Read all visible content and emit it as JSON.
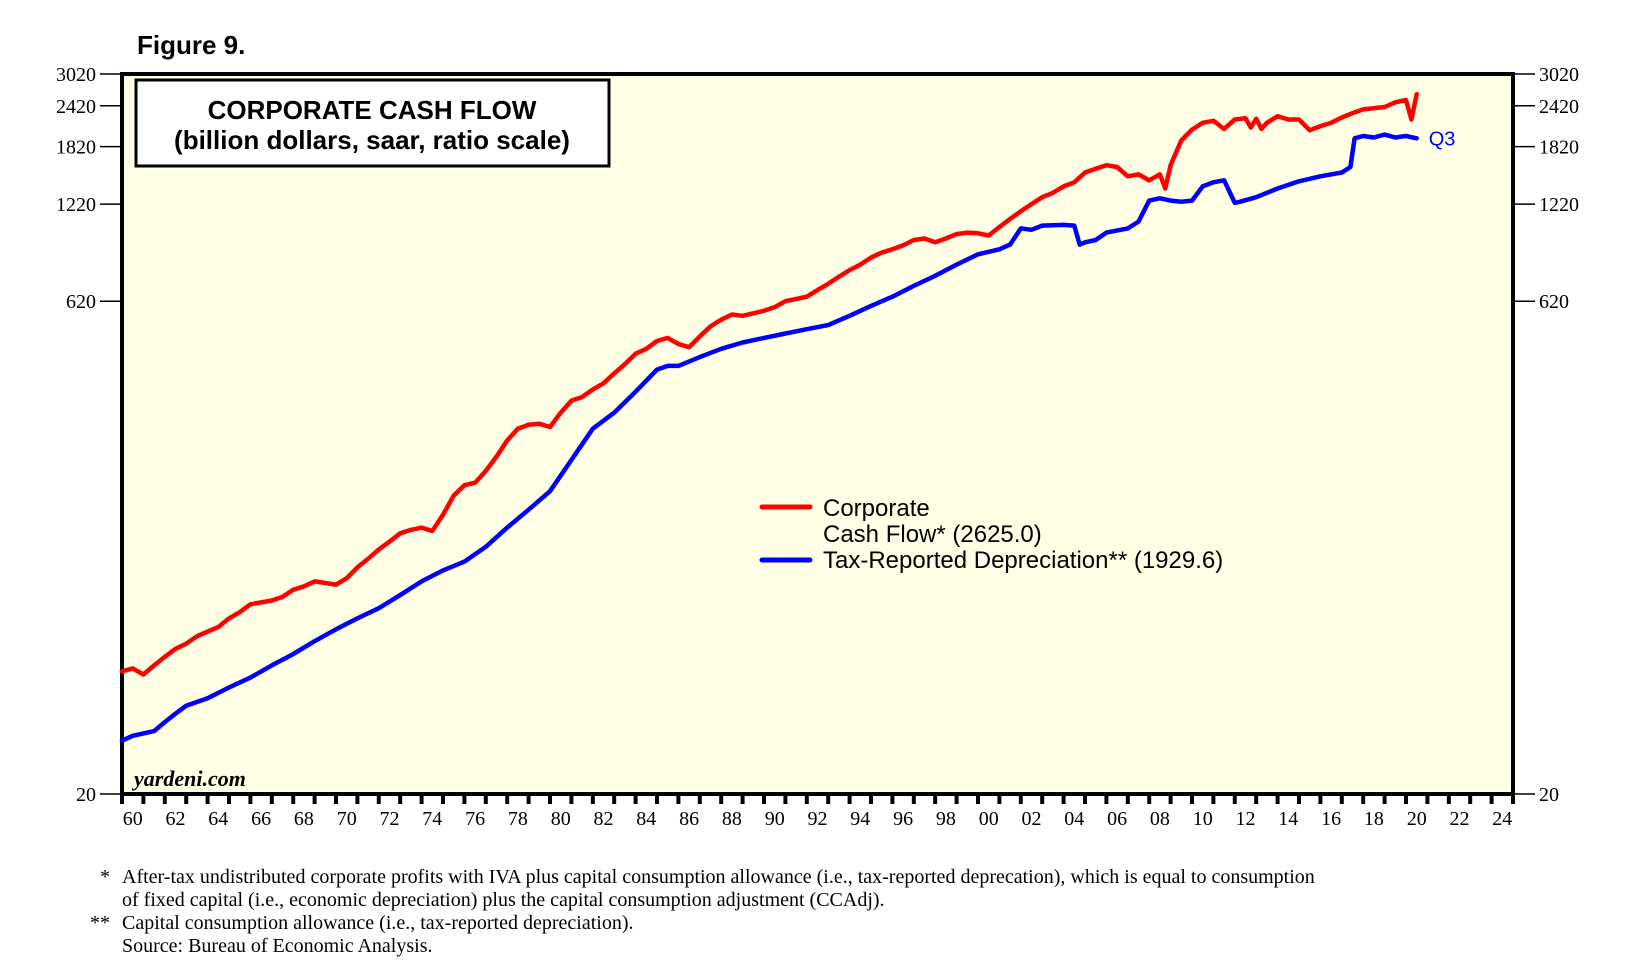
{
  "figure_label": "Figure 9.",
  "brand": "yardeni.com",
  "title_box": {
    "line1": "CORPORATE CASH FLOW",
    "line2": "(billion dollars, saar, ratio scale)"
  },
  "period_label": "Q3",
  "footnotes": [
    {
      "mark": "*",
      "lines": [
        "After-tax undistributed corporate profits with IVA plus capital consumption allowance (i.e., tax-reported deprecation), which is equal to consumption",
        "of fixed capital (i.e., economic depreciation) plus the capital consumption adjustment (CCAdj)."
      ]
    },
    {
      "mark": "**",
      "lines": [
        "Capital consumption allowance (i.e., tax-reported depreciation).",
        "Source: Bureau of Economic Analysis."
      ]
    }
  ],
  "chart_data": {
    "type": "line",
    "title": "CORPORATE CASH FLOW",
    "subtitle": "(billion dollars, saar, ratio scale)",
    "xlabel": "",
    "ylabel": "",
    "y_scale": "log",
    "ylim": [
      20,
      3020
    ],
    "xlim": [
      1960,
      2025
    ],
    "y_ticks": [
      20,
      620,
      1220,
      1820,
      2420,
      3020
    ],
    "y_tick_labels": [
      "20",
      "620",
      "1220",
      "1820",
      "2420",
      "3020"
    ],
    "x_tick_years": [
      1960,
      1962,
      1964,
      1966,
      1968,
      1970,
      1972,
      1974,
      1976,
      1978,
      1980,
      1982,
      1984,
      1986,
      1988,
      1990,
      1992,
      1994,
      1996,
      1998,
      2000,
      2002,
      2004,
      2006,
      2008,
      2010,
      2012,
      2014,
      2016,
      2018,
      2020,
      2022,
      2024
    ],
    "x_tick_labels": [
      "60",
      "62",
      "64",
      "66",
      "68",
      "70",
      "72",
      "74",
      "76",
      "78",
      "80",
      "82",
      "84",
      "86",
      "88",
      "90",
      "92",
      "94",
      "96",
      "98",
      "00",
      "02",
      "04",
      "06",
      "08",
      "10",
      "12",
      "14",
      "16",
      "18",
      "20",
      "22",
      "24"
    ],
    "legend_placement": "center-right",
    "grid": false,
    "series": [
      {
        "name": "Corporate Cash Flow*",
        "legend_lines": [
          "Corporate",
          "Cash Flow* (2625.0)"
        ],
        "latest_value": 2625.0,
        "color": "#ff0000",
        "x": [
          1960.0,
          1960.5,
          1961.0,
          1961.5,
          1962.0,
          1962.5,
          1963.0,
          1963.5,
          1964.0,
          1964.5,
          1965.0,
          1965.5,
          1966.0,
          1966.5,
          1967.0,
          1967.5,
          1968.0,
          1968.5,
          1969.0,
          1969.5,
          1970.0,
          1970.5,
          1971.0,
          1971.5,
          1972.0,
          1972.5,
          1973.0,
          1973.5,
          1974.0,
          1974.5,
          1975.0,
          1975.5,
          1976.0,
          1976.5,
          1977.0,
          1977.5,
          1978.0,
          1978.5,
          1979.0,
          1979.5,
          1980.0,
          1980.5,
          1981.0,
          1981.5,
          1982.0,
          1982.5,
          1983.0,
          1983.5,
          1984.0,
          1984.5,
          1985.0,
          1985.5,
          1986.0,
          1986.5,
          1987.0,
          1987.5,
          1988.0,
          1988.5,
          1989.0,
          1989.5,
          1990.0,
          1990.5,
          1991.0,
          1991.5,
          1992.0,
          1992.5,
          1993.0,
          1993.5,
          1994.0,
          1994.5,
          1995.0,
          1995.5,
          1996.0,
          1996.5,
          1997.0,
          1997.5,
          1998.0,
          1998.5,
          1999.0,
          1999.5,
          2000.0,
          2000.5,
          2001.0,
          2001.5,
          2002.0,
          2002.5,
          2003.0,
          2003.5,
          2004.0,
          2004.5,
          2005.0,
          2005.5,
          2006.0,
          2006.5,
          2007.0,
          2007.5,
          2008.0,
          2008.5,
          2008.75,
          2009.0,
          2009.5,
          2010.0,
          2010.5,
          2011.0,
          2011.5,
          2012.0,
          2012.5,
          2012.75,
          2013.0,
          2013.25,
          2013.5,
          2014.0,
          2014.5,
          2015.0,
          2015.5,
          2016.0,
          2016.5,
          2017.0,
          2017.5,
          2018.0,
          2018.5,
          2019.0,
          2019.5,
          2020.0,
          2020.25,
          2020.5
        ],
        "values": [
          47,
          48,
          46,
          49,
          52,
          55,
          57,
          60,
          62,
          64,
          68,
          71,
          75,
          76,
          77,
          79,
          83,
          85,
          88,
          87,
          86,
          90,
          97,
          103,
          110,
          116,
          123,
          126,
          128,
          125,
          140,
          160,
          172,
          175,
          190,
          210,
          235,
          255,
          262,
          264,
          258,
          285,
          310,
          318,
          335,
          350,
          375,
          400,
          430,
          445,
          470,
          480,
          460,
          450,
          485,
          520,
          545,
          565,
          560,
          570,
          580,
          595,
          620,
          630,
          640,
          670,
          700,
          735,
          770,
          800,
          840,
          870,
          890,
          915,
          950,
          960,
          935,
          960,
          990,
          1000,
          995,
          980,
          1040,
          1100,
          1160,
          1220,
          1280,
          1320,
          1380,
          1420,
          1520,
          1560,
          1600,
          1580,
          1480,
          1500,
          1440,
          1500,
          1360,
          1600,
          1900,
          2050,
          2150,
          2180,
          2060,
          2200,
          2220,
          2080,
          2210,
          2060,
          2150,
          2250,
          2200,
          2200,
          2040,
          2100,
          2150,
          2230,
          2300,
          2360,
          2380,
          2400,
          2480,
          2520,
          2200,
          2625
        ]
      },
      {
        "name": "Tax-Reported Depreciation**",
        "legend_lines": [
          "Tax-Reported Depreciation** (1929.6)"
        ],
        "latest_value": 1929.6,
        "color": "#0000ff",
        "x": [
          1960.0,
          1960.5,
          1961.0,
          1961.5,
          1962.0,
          1962.5,
          1963.0,
          1964.0,
          1965.0,
          1966.0,
          1967.0,
          1968.0,
          1969.0,
          1970.0,
          1971.0,
          1972.0,
          1973.0,
          1974.0,
          1975.0,
          1976.0,
          1977.0,
          1978.0,
          1979.0,
          1980.0,
          1981.0,
          1982.0,
          1983.0,
          1984.0,
          1985.0,
          1985.5,
          1986.0,
          1987.0,
          1988.0,
          1989.0,
          1990.0,
          1991.0,
          1992.0,
          1993.0,
          1994.0,
          1995.0,
          1996.0,
          1997.0,
          1998.0,
          1999.0,
          2000.0,
          2001.0,
          2001.5,
          2002.0,
          2002.5,
          2003.0,
          2004.0,
          2004.5,
          2004.75,
          2005.0,
          2005.5,
          2006.0,
          2007.0,
          2007.5,
          2008.0,
          2008.5,
          2009.0,
          2009.5,
          2010.0,
          2010.5,
          2011.0,
          2011.5,
          2012.0,
          2012.25,
          2013.0,
          2014.0,
          2015.0,
          2016.0,
          2017.0,
          2017.4,
          2017.6,
          2018.0,
          2018.5,
          2019.0,
          2019.5,
          2020.0,
          2020.5
        ],
        "values": [
          29,
          30,
          30.5,
          31,
          33,
          35,
          37,
          39,
          42,
          45,
          49,
          53,
          58,
          63,
          68,
          73,
          80,
          88,
          95,
          101,
          112,
          128,
          145,
          165,
          205,
          255,
          285,
          330,
          385,
          395,
          395,
          420,
          445,
          465,
          480,
          495,
          510,
          525,
          560,
          600,
          640,
          690,
          740,
          800,
          860,
          890,
          920,
          1030,
          1020,
          1050,
          1055,
          1050,
          920,
          935,
          950,
          1000,
          1030,
          1080,
          1250,
          1270,
          1250,
          1240,
          1250,
          1380,
          1420,
          1440,
          1230,
          1240,
          1280,
          1360,
          1430,
          1480,
          1520,
          1580,
          1930,
          1960,
          1940,
          1980,
          1940,
          1960,
          1929.6
        ]
      }
    ]
  }
}
